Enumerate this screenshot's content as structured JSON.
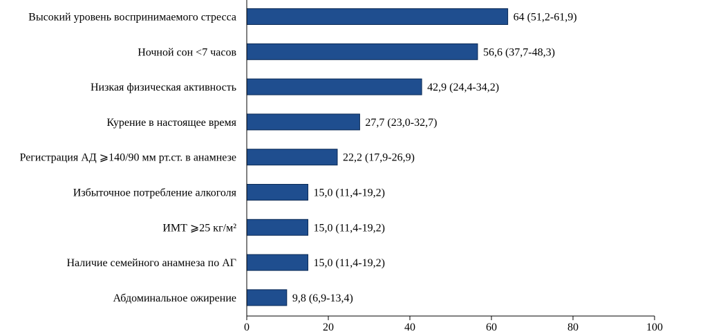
{
  "chart_data": {
    "type": "bar",
    "orientation": "horizontal",
    "categories": [
      "Высокий уровень воспринимаемого стресса",
      "Ночной сон <7 часов",
      "Низкая физическая активность",
      "Курение в настоящее время",
      "Регистрация АД ⩾140/90 мм рт.ст. в анамнезе",
      "Избыточное потребление алкоголя",
      "ИМТ ⩾25 кг/м²",
      "Наличие семейного анамнеза по АГ",
      "Абдоминальное ожирение"
    ],
    "values": [
      64,
      56.6,
      42.9,
      27.7,
      22.2,
      15.0,
      15.0,
      15.0,
      9.8
    ],
    "value_labels": [
      "64 (51,2-61,9)",
      "56,6 (37,7-48,3)",
      "42,9 (24,4-34,2)",
      "27,7 (23,0-32,7)",
      "22,2 (17,9-26,9)",
      "15,0 (11,4-19,2)",
      "15,0 (11,4-19,2)",
      "15,0 (11,4-19,2)",
      "9,8 (6,9-13,4)"
    ],
    "xlim": [
      0,
      100
    ],
    "xticks": [
      0,
      20,
      40,
      60,
      80,
      100
    ],
    "title": "",
    "xlabel": "",
    "ylabel": "",
    "grid": false,
    "legend": "none",
    "bar_color": "#1f4e8f",
    "bar_edge_color": "#0b2a55"
  }
}
